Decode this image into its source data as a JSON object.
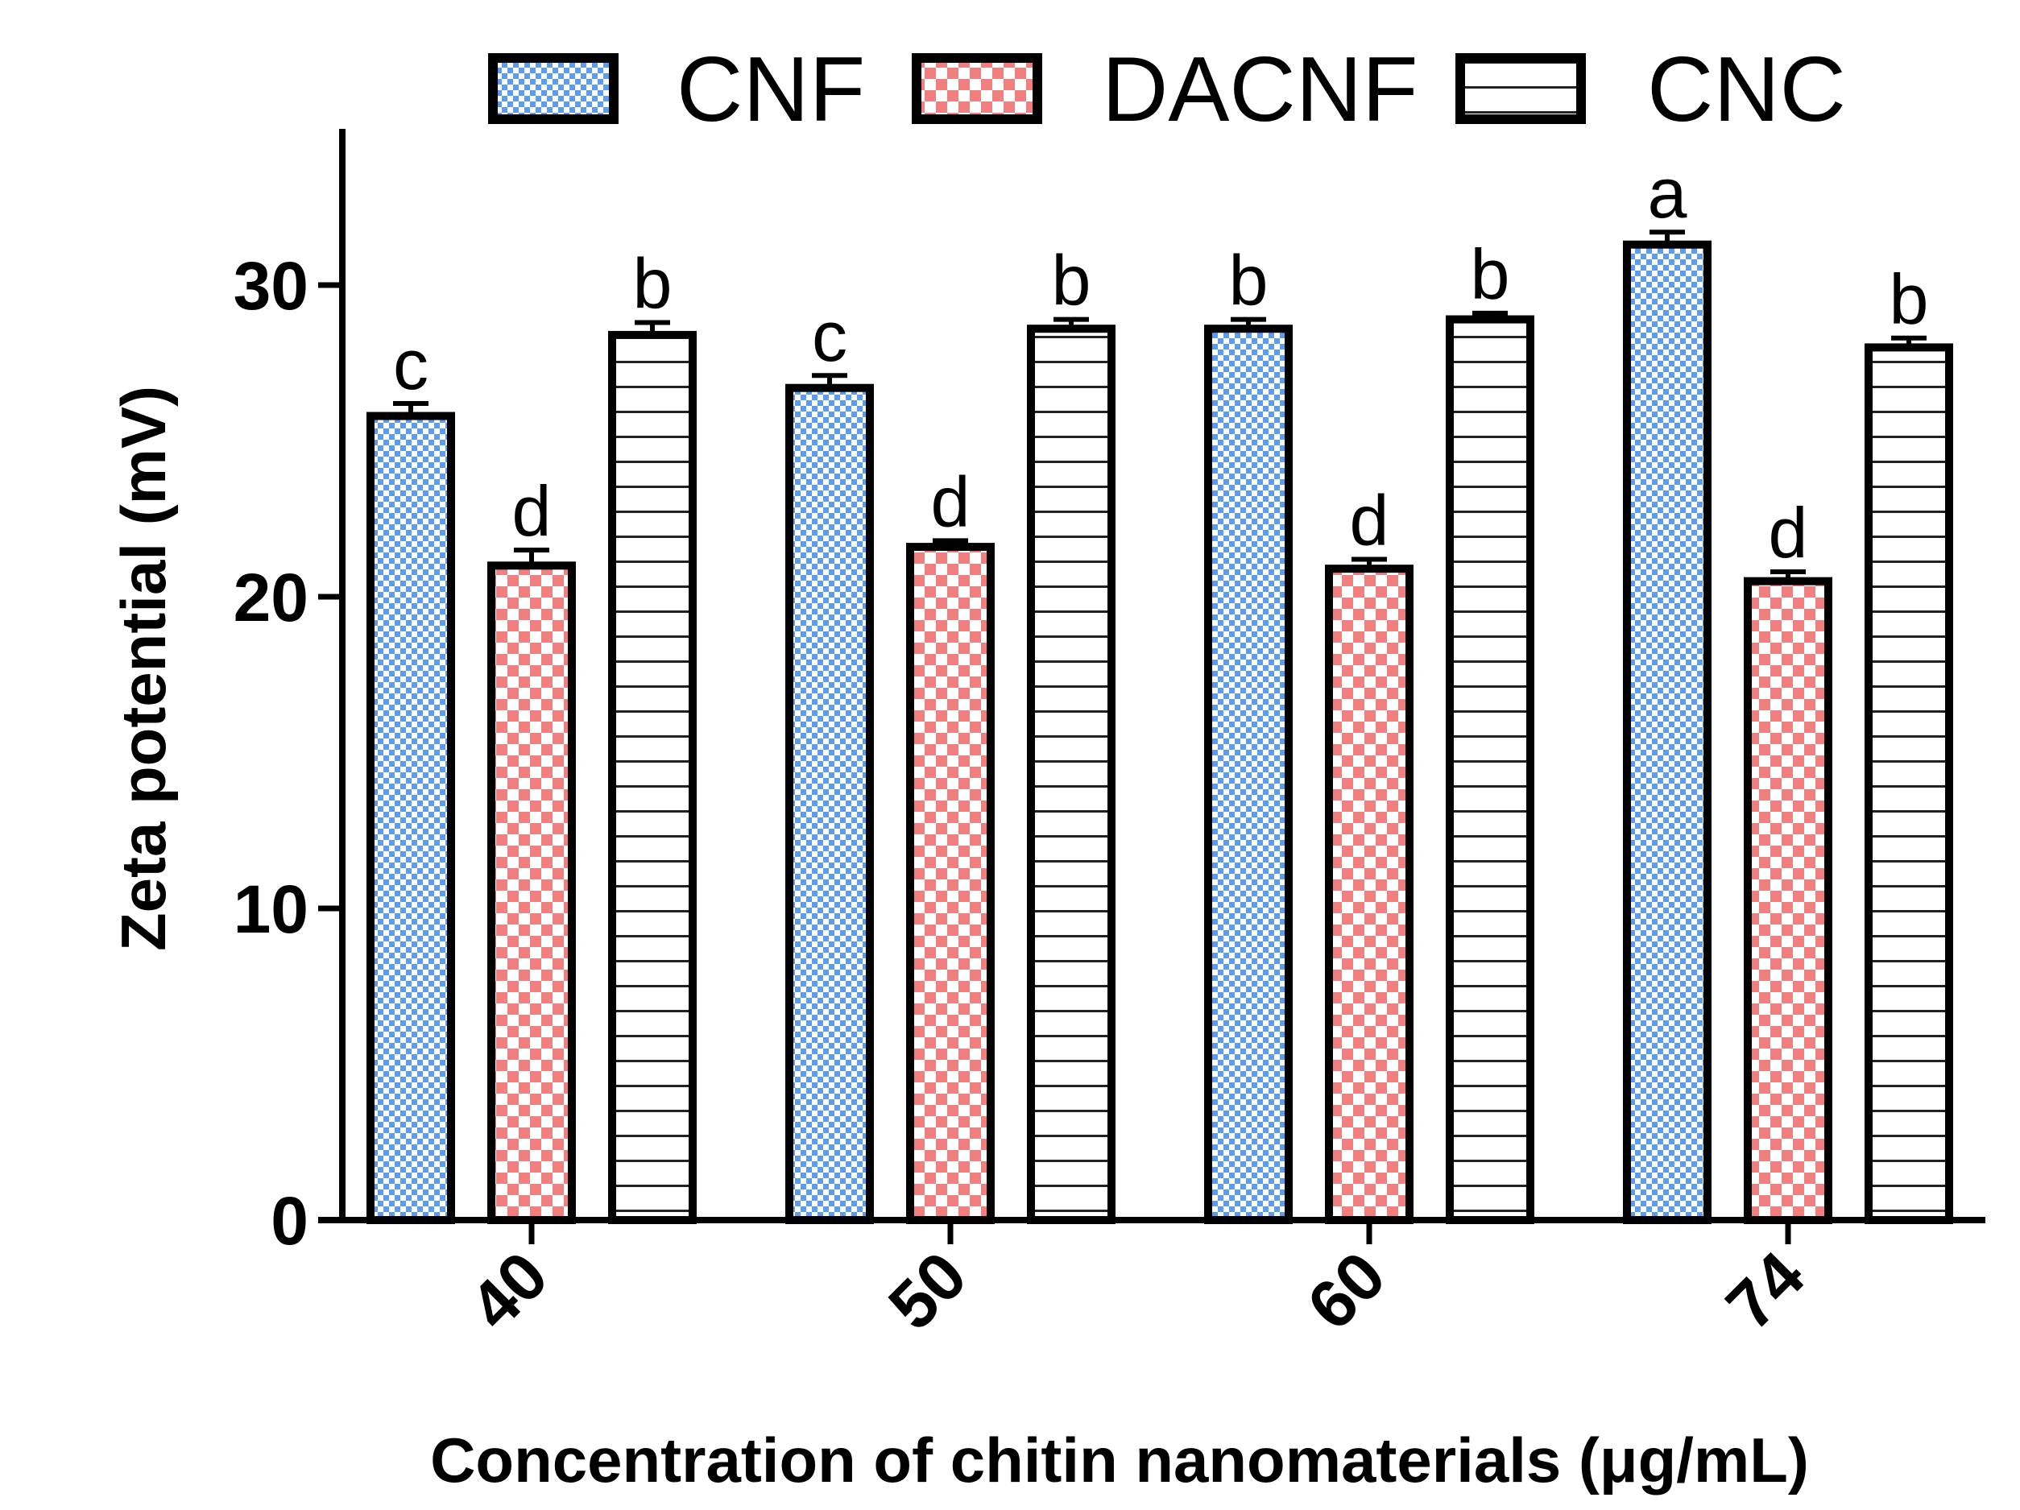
{
  "chart_data": {
    "type": "bar",
    "xlabel": "Concentration of chitin nanomaterials (μg/mL)",
    "ylabel": "Zeta potential (mV)",
    "ylim": [
      0,
      35
    ],
    "yticks": [
      0,
      10,
      20,
      30
    ],
    "categories": [
      "40",
      "50",
      "60",
      "74"
    ],
    "legend_position": "top",
    "series": [
      {
        "name": "CNF",
        "pattern": "blue-checker",
        "color": "#5b9bf0",
        "values": [
          25.8,
          26.7,
          28.6,
          31.3
        ],
        "errors": [
          0.4,
          0.4,
          0.3,
          0.4
        ],
        "labels": [
          "c",
          "c",
          "b",
          "a"
        ]
      },
      {
        "name": "DACNF",
        "pattern": "red-checker",
        "color": "#f08080",
        "values": [
          21.0,
          21.6,
          20.9,
          20.5
        ],
        "errors": [
          0.5,
          0.2,
          0.3,
          0.3
        ],
        "labels": [
          "d",
          "d",
          "d",
          "d"
        ]
      },
      {
        "name": "CNC",
        "pattern": "horizontal-lines",
        "color": "#000000",
        "values": [
          28.4,
          28.6,
          28.9,
          28.0
        ],
        "errors": [
          0.4,
          0.3,
          0.2,
          0.3
        ],
        "labels": [
          "b",
          "b",
          "b",
          "b"
        ]
      }
    ]
  }
}
